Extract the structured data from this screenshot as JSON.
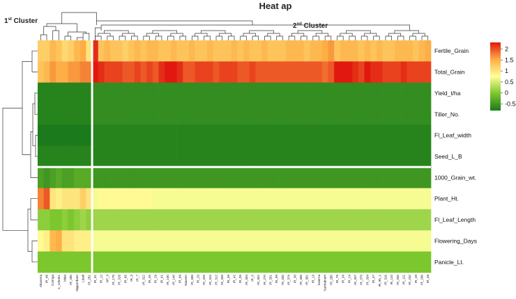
{
  "chart_data": {
    "type": "heatmap",
    "title": "Heat ap",
    "cluster_labels": [
      {
        "main": "1",
        "sup": "st",
        "rest": " Cluster"
      },
      {
        "main": "2",
        "sup": "nd",
        "rest": " Cluster"
      }
    ],
    "rows": [
      "Fertile_Grain",
      "Total_Grain",
      "Yield_t/ha",
      "Tiller_No.",
      "Fl_Leaf_width",
      "Seed_L_B",
      "1000_Grain_wt.",
      "Plant_Ht.",
      "Fl_Leaf_Length",
      "Flowering_Days",
      "Panicle_Lt."
    ],
    "columns": [
      "Abusena",
      "IR_46",
      "Coringa",
      "C_105451",
      "Mala",
      "IR_280",
      "Nipponbare",
      "Lioali",
      "IR_281",
      "IR_91",
      "IR_12",
      "NT_3",
      "IR_179",
      "IR_318",
      "IR_65",
      "IR_3",
      "IR_7",
      "IR_322",
      "IR_45",
      "IR_29",
      "IR_41",
      "IR_100",
      "IR_140",
      "IR_66",
      "Naveen",
      "IR_308",
      "IR_20",
      "IR_325",
      "IR_310",
      "IR_312",
      "IR_339",
      "IR_39",
      "IR_42",
      "IR_95",
      "IR_353",
      "IR_5",
      "IR_302",
      "IR_270",
      "IR_331",
      "IR_99",
      "IR_330",
      "IR_374",
      "IR_30",
      "IR_306",
      "IR_381",
      "IR_13",
      "Swarna",
      "Sarthakrath",
      "IR_285",
      "IR_76",
      "IR_34",
      "IR_24",
      "IR_337",
      "IR_373",
      "IR_334",
      "IR_47",
      "IR_95_1",
      "IR_316",
      "IR_110",
      "IR_335",
      "IR_111",
      "IR_232",
      "IR_49",
      "IR_296",
      "IR_48"
    ],
    "values": [
      [
        1.2,
        1.2,
        1.4,
        1.3,
        1.1,
        1.2,
        1.4,
        1.5,
        1.0,
        2.1,
        1.3,
        1.4,
        1.3,
        1.3,
        1.2,
        1.3,
        1.4,
        1.3,
        1.4,
        1.4,
        1.3,
        1.3,
        1.4,
        1.3,
        1.3,
        1.4,
        1.3,
        1.3,
        1.4,
        1.3,
        1.3,
        1.3,
        1.4,
        1.3,
        1.4,
        1.3,
        1.3,
        1.4,
        1.3,
        1.3,
        1.3,
        1.4,
        1.4,
        1.4,
        1.3,
        1.4,
        1.4,
        1.5,
        1.6,
        1.3,
        1.4,
        1.4,
        1.4,
        1.3,
        1.4,
        1.3,
        1.4,
        1.3,
        1.3,
        1.4,
        1.4,
        1.4,
        1.3,
        1.4,
        1.5
      ],
      [
        1.3,
        1.4,
        1.6,
        1.5,
        1.5,
        1.6,
        1.6,
        1.7,
        1.7,
        2.2,
        2.1,
        2.0,
        2.0,
        2.0,
        1.9,
        1.9,
        2.0,
        1.9,
        2.0,
        1.9,
        2.1,
        2.2,
        2.2,
        2.1,
        1.9,
        1.9,
        2.0,
        2.0,
        2.0,
        1.9,
        2.0,
        2.0,
        2.0,
        1.9,
        1.9,
        2.0,
        1.9,
        1.9,
        1.9,
        1.9,
        1.9,
        1.9,
        1.9,
        1.9,
        1.9,
        1.9,
        1.9,
        1.8,
        1.9,
        2.2,
        2.2,
        2.2,
        2.1,
        2.0,
        2.2,
        2.1,
        2.1,
        2.0,
        2.0,
        2.0,
        2.1,
        2.0,
        2.0,
        2.0,
        2.0
      ],
      [
        -0.7,
        -0.7,
        -0.7,
        -0.7,
        -0.7,
        -0.7,
        -0.7,
        -0.7,
        -0.7,
        -0.6,
        -0.6,
        -0.6,
        -0.6,
        -0.6,
        -0.6,
        -0.6,
        -0.6,
        -0.6,
        -0.6,
        -0.6,
        -0.6,
        -0.6,
        -0.6,
        -0.6,
        -0.6,
        -0.6,
        -0.6,
        -0.6,
        -0.6,
        -0.6,
        -0.6,
        -0.6,
        -0.6,
        -0.6,
        -0.6,
        -0.6,
        -0.6,
        -0.6,
        -0.6,
        -0.6,
        -0.6,
        -0.6,
        -0.6,
        -0.6,
        -0.6,
        -0.6,
        -0.6,
        -0.6,
        -0.6,
        -0.6,
        -0.6,
        -0.6,
        -0.6,
        -0.6,
        -0.6,
        -0.6,
        -0.6,
        -0.6,
        -0.6,
        -0.6,
        -0.6,
        -0.6,
        -0.6,
        -0.6,
        -0.6
      ],
      [
        -0.7,
        -0.7,
        -0.7,
        -0.7,
        -0.7,
        -0.7,
        -0.7,
        -0.7,
        -0.7,
        -0.6,
        -0.6,
        -0.6,
        -0.6,
        -0.6,
        -0.6,
        -0.6,
        -0.6,
        -0.6,
        -0.6,
        -0.6,
        -0.6,
        -0.6,
        -0.6,
        -0.6,
        -0.6,
        -0.6,
        -0.6,
        -0.6,
        -0.6,
        -0.6,
        -0.6,
        -0.6,
        -0.6,
        -0.6,
        -0.6,
        -0.6,
        -0.6,
        -0.6,
        -0.6,
        -0.6,
        -0.6,
        -0.6,
        -0.6,
        -0.6,
        -0.6,
        -0.6,
        -0.6,
        -0.6,
        -0.6,
        -0.6,
        -0.6,
        -0.6,
        -0.6,
        -0.6,
        -0.6,
        -0.6,
        -0.6,
        -0.6,
        -0.6,
        -0.6,
        -0.6,
        -0.6,
        -0.6,
        -0.6,
        -0.6
      ],
      [
        -0.8,
        -0.8,
        -0.8,
        -0.8,
        -0.8,
        -0.8,
        -0.8,
        -0.8,
        -0.8,
        -0.7,
        -0.7,
        -0.7,
        -0.7,
        -0.7,
        -0.7,
        -0.7,
        -0.7,
        -0.7,
        -0.7,
        -0.7,
        -0.7,
        -0.7,
        -0.7,
        -0.7,
        -0.7,
        -0.7,
        -0.7,
        -0.7,
        -0.7,
        -0.7,
        -0.7,
        -0.7,
        -0.7,
        -0.7,
        -0.7,
        -0.7,
        -0.7,
        -0.7,
        -0.7,
        -0.7,
        -0.7,
        -0.7,
        -0.7,
        -0.7,
        -0.7,
        -0.7,
        -0.7,
        -0.7,
        -0.7,
        -0.7,
        -0.7,
        -0.7,
        -0.7,
        -0.7,
        -0.7,
        -0.7,
        -0.7,
        -0.7,
        -0.7,
        -0.7,
        -0.7,
        -0.7,
        -0.7,
        -0.7,
        -0.7
      ],
      [
        -0.7,
        -0.7,
        -0.7,
        -0.7,
        -0.7,
        -0.7,
        -0.7,
        -0.7,
        -0.7,
        -0.7,
        -0.7,
        -0.7,
        -0.7,
        -0.7,
        -0.7,
        -0.7,
        -0.7,
        -0.7,
        -0.7,
        -0.7,
        -0.7,
        -0.7,
        -0.7,
        -0.7,
        -0.7,
        -0.7,
        -0.7,
        -0.7,
        -0.7,
        -0.7,
        -0.7,
        -0.7,
        -0.7,
        -0.7,
        -0.7,
        -0.7,
        -0.7,
        -0.7,
        -0.7,
        -0.7,
        -0.7,
        -0.7,
        -0.7,
        -0.7,
        -0.7,
        -0.7,
        -0.7,
        -0.7,
        -0.7,
        -0.7,
        -0.7,
        -0.7,
        -0.7,
        -0.7,
        -0.7,
        -0.7,
        -0.7,
        -0.7,
        -0.7,
        -0.7,
        -0.7,
        -0.7,
        -0.7,
        -0.7,
        -0.7
      ],
      [
        -0.4,
        -0.5,
        -0.4,
        -0.3,
        -0.4,
        -0.4,
        -0.3,
        -0.3,
        -0.3,
        -0.5,
        -0.5,
        -0.5,
        -0.5,
        -0.5,
        -0.5,
        -0.5,
        -0.5,
        -0.5,
        -0.5,
        -0.5,
        -0.5,
        -0.5,
        -0.5,
        -0.5,
        -0.5,
        -0.5,
        -0.5,
        -0.5,
        -0.5,
        -0.5,
        -0.5,
        -0.5,
        -0.5,
        -0.5,
        -0.5,
        -0.5,
        -0.5,
        -0.5,
        -0.5,
        -0.5,
        -0.5,
        -0.5,
        -0.5,
        -0.5,
        -0.5,
        -0.5,
        -0.5,
        -0.5,
        -0.5,
        -0.5,
        -0.5,
        -0.5,
        -0.5,
        -0.5,
        -0.5,
        -0.5,
        -0.5,
        -0.5,
        -0.5,
        -0.5,
        -0.5,
        -0.5,
        -0.5,
        -0.5,
        -0.5
      ],
      [
        1.7,
        1.9,
        1.0,
        0.9,
        1.0,
        1.0,
        1.0,
        1.2,
        1.0,
        0.7,
        0.8,
        0.8,
        0.8,
        0.8,
        0.8,
        0.8,
        0.8,
        0.8,
        0.8,
        0.7,
        0.7,
        0.7,
        0.7,
        0.7,
        0.7,
        0.7,
        0.7,
        0.7,
        0.7,
        0.7,
        0.7,
        0.7,
        0.7,
        0.7,
        0.7,
        0.7,
        0.7,
        0.7,
        0.7,
        0.7,
        0.7,
        0.7,
        0.7,
        0.7,
        0.7,
        0.7,
        0.7,
        0.7,
        0.7,
        0.7,
        0.7,
        0.7,
        0.7,
        0.7,
        0.7,
        0.7,
        0.7,
        0.7,
        0.7,
        0.7,
        0.7,
        0.7,
        0.7,
        0.7,
        0.7
      ],
      [
        0.1,
        0.1,
        0.0,
        0.0,
        0.1,
        0.0,
        0.1,
        0.2,
        0.1,
        0.2,
        0.2,
        0.2,
        0.2,
        0.2,
        0.2,
        0.2,
        0.2,
        0.2,
        0.2,
        0.2,
        0.2,
        0.2,
        0.2,
        0.2,
        0.2,
        0.2,
        0.2,
        0.2,
        0.2,
        0.2,
        0.2,
        0.2,
        0.2,
        0.2,
        0.2,
        0.2,
        0.2,
        0.2,
        0.2,
        0.2,
        0.2,
        0.2,
        0.2,
        0.2,
        0.2,
        0.2,
        0.2,
        0.2,
        0.2,
        0.2,
        0.2,
        0.2,
        0.2,
        0.2,
        0.2,
        0.2,
        0.2,
        0.2,
        0.2,
        0.2,
        0.2,
        0.2,
        0.2,
        0.2,
        0.2
      ],
      [
        0.8,
        0.9,
        1.4,
        1.5,
        1.0,
        1.0,
        0.9,
        0.9,
        0.9,
        0.7,
        0.7,
        0.7,
        0.7,
        0.7,
        0.7,
        0.7,
        0.7,
        0.7,
        0.7,
        0.7,
        0.7,
        0.7,
        0.7,
        0.7,
        0.7,
        0.7,
        0.7,
        0.7,
        0.7,
        0.7,
        0.7,
        0.7,
        0.7,
        0.7,
        0.7,
        0.7,
        0.7,
        0.7,
        0.7,
        0.7,
        0.7,
        0.7,
        0.7,
        0.7,
        0.7,
        0.7,
        0.7,
        0.7,
        0.7,
        0.7,
        0.7,
        0.7,
        0.7,
        0.7,
        0.7,
        0.7,
        0.7,
        0.7,
        0.7,
        0.7,
        0.7,
        0.7,
        0.7,
        0.7,
        0.7
      ],
      [
        0.0,
        0.0,
        0.0,
        0.0,
        0.0,
        0.0,
        0.0,
        0.0,
        0.0,
        0.0,
        0.0,
        0.0,
        0.0,
        0.0,
        0.0,
        0.0,
        0.0,
        0.0,
        0.0,
        0.0,
        0.0,
        0.0,
        0.0,
        0.0,
        0.0,
        0.0,
        0.0,
        0.0,
        0.0,
        0.0,
        0.0,
        0.0,
        0.0,
        0.0,
        0.0,
        0.0,
        0.0,
        0.0,
        0.0,
        0.0,
        0.0,
        0.0,
        0.0,
        0.0,
        0.0,
        0.0,
        0.0,
        0.0,
        0.0,
        0.0,
        0.0,
        0.0,
        0.0,
        0.0,
        0.0,
        0.0,
        0.0,
        0.0,
        0.0,
        0.0,
        0.0,
        0.0,
        0.0,
        0.0,
        0.0
      ]
    ],
    "column_split_after": 9,
    "row_split_after": 6,
    "legend": {
      "ticks": [
        "2",
        "1.5",
        "1",
        "0.5",
        "0",
        "-0.5"
      ],
      "tick_values": [
        2,
        1.5,
        1,
        0.5,
        0,
        -0.5
      ],
      "range": [
        -0.8,
        2.3
      ],
      "position": "right"
    },
    "colors": {
      "low": "#1b7a1b",
      "mid_low": "#7cc62e",
      "mid": "#ffff99",
      "mid_high": "#fdae45",
      "high": "#e0180f"
    }
  }
}
